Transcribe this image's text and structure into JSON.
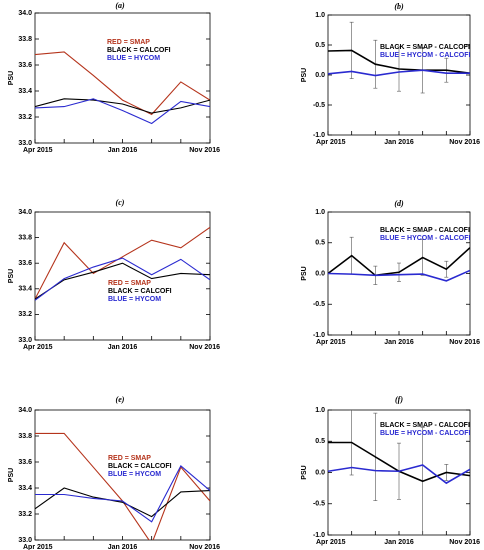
{
  "chart_data": [
    {
      "type": "line",
      "title": "(a)",
      "ylabel": "PSU",
      "categories": [
        "Apr 2015",
        null,
        null,
        "Jan 2016",
        null,
        null,
        "Nov 2016"
      ],
      "ylim": [
        33,
        34
      ],
      "yticks": [
        {
          "value": 33,
          "label": "33.0"
        },
        33.2,
        33.4,
        33.6,
        33.8,
        {
          "value": 34,
          "label": "34.0"
        }
      ],
      "series": [
        {
          "name": "RED = SMAP",
          "color": "#b5341c",
          "values": [
            33.68,
            33.7,
            33.52,
            33.33,
            33.22,
            33.47,
            33.33
          ]
        },
        {
          "name": "BLACK = CALCOFI",
          "color": "#000000",
          "values": [
            33.28,
            33.34,
            33.33,
            33.3,
            33.23,
            33.27,
            33.33
          ]
        },
        {
          "name": "BLUE = HYCOM",
          "color": "#2a2ad0",
          "values": [
            33.27,
            33.28,
            33.34,
            33.25,
            33.15,
            33.32,
            33.28
          ]
        }
      ]
    },
    {
      "type": "line",
      "title": "(b)",
      "ylabel": "PSU",
      "categories": [
        "Apr 2015",
        null,
        null,
        "Jan 2016",
        null,
        null,
        "Nov 2016"
      ],
      "ylim": [
        -1,
        1
      ],
      "yticks": [
        {
          "value": -1,
          "label": "-1.0"
        },
        -0.5,
        {
          "value": 0,
          "label": "0.0"
        },
        0.5,
        {
          "value": 1,
          "label": "1.0"
        }
      ],
      "series": [
        {
          "name": "BLACK = SMAP - CALCOFI",
          "color": "#000000",
          "values": [
            0.4,
            0.41,
            0.18,
            0.1,
            0.08,
            0.08,
            0.03
          ],
          "errors": [
            null,
            0.47,
            0.4,
            0.37,
            0.38,
            0.2,
            null
          ]
        },
        {
          "name": "BLUE = HYCOM - CALCOFI",
          "color": "#2a2ad0",
          "values": [
            0.02,
            0.06,
            -0.01,
            0.05,
            0.08,
            0.03,
            0.03
          ]
        }
      ]
    },
    {
      "type": "line",
      "title": "(c)",
      "ylabel": "PSU",
      "categories": [
        "Apr 2015",
        null,
        null,
        "Jan 2016",
        null,
        null,
        "Nov 2016"
      ],
      "ylim": [
        33,
        34
      ],
      "yticks": [
        {
          "value": 33,
          "label": "33.0"
        },
        33.2,
        33.4,
        33.6,
        33.8,
        {
          "value": 34,
          "label": "34.0"
        }
      ],
      "series": [
        {
          "name": "RED = SMAP",
          "color": "#b5341c",
          "values": [
            33.32,
            33.76,
            33.52,
            33.65,
            33.78,
            33.72,
            33.88
          ]
        },
        {
          "name": "BLACK = CALCOFI",
          "color": "#000000",
          "values": [
            33.32,
            33.47,
            33.53,
            33.6,
            33.48,
            33.52,
            33.51
          ]
        },
        {
          "name": "BLUE = HYCOM",
          "color": "#2a2ad0",
          "values": [
            33.31,
            33.48,
            33.57,
            33.64,
            33.51,
            33.63,
            33.47
          ]
        }
      ]
    },
    {
      "type": "line",
      "title": "(d)",
      "ylabel": "PSU",
      "categories": [
        "Apr 2015",
        null,
        null,
        "Jan 2016",
        null,
        null,
        "Nov 2016"
      ],
      "ylim": [
        -1,
        1
      ],
      "yticks": [
        {
          "value": -1,
          "label": "-1.0"
        },
        -0.5,
        {
          "value": 0,
          "label": "0.0"
        },
        0.5,
        {
          "value": 1,
          "label": "1.0"
        }
      ],
      "series": [
        {
          "name": "BLACK = SMAP - CALCOFI",
          "color": "#000000",
          "values": [
            0,
            0.29,
            -0.03,
            0.02,
            0.26,
            0.07,
            0.42
          ],
          "errors": [
            null,
            0.3,
            0.15,
            0.15,
            0.29,
            0.13,
            null
          ]
        },
        {
          "name": "BLUE = HYCOM - CALCOFI",
          "color": "#2a2ad0",
          "values": [
            0,
            -0.01,
            -0.03,
            -0.02,
            -0.01,
            -0.12,
            0.05
          ]
        }
      ]
    },
    {
      "type": "line",
      "title": "(e)",
      "ylabel": "PSU",
      "categories": [
        "Apr 2015",
        null,
        null,
        "Jan 2016",
        null,
        null,
        "Nov 2016"
      ],
      "ylim": [
        33,
        34
      ],
      "yticks": [
        {
          "value": 33,
          "label": "33.0"
        },
        33.2,
        33.4,
        33.6,
        33.8,
        {
          "value": 34,
          "label": "34.0"
        }
      ],
      "series": [
        {
          "name": "RED = SMAP",
          "color": "#b5341c",
          "values": [
            33.82,
            33.82,
            33.56,
            33.3,
            32.97,
            33.56,
            33.3
          ]
        },
        {
          "name": "BLACK = CALCOFI",
          "color": "#000000",
          "values": [
            33.24,
            33.4,
            33.33,
            33.29,
            33.18,
            33.37,
            33.38
          ]
        },
        {
          "name": "BLUE = HYCOM",
          "color": "#2a2ad0",
          "values": [
            33.35,
            33.35,
            33.32,
            33.3,
            33.14,
            33.57,
            33.38
          ]
        }
      ]
    },
    {
      "type": "line",
      "title": "(f)",
      "ylabel": "PSU",
      "categories": [
        "Apr 2015",
        null,
        null,
        "Jan 2016",
        null,
        null,
        "Nov 2016"
      ],
      "ylim": [
        -1,
        1
      ],
      "yticks": [
        {
          "value": -1,
          "label": "-1.0"
        },
        -0.5,
        {
          "value": 0,
          "label": "0.0"
        },
        0.5,
        {
          "value": 1,
          "label": "1.0"
        }
      ],
      "series": [
        {
          "name": "BLACK = SMAP - CALCOFI",
          "color": "#000000",
          "values": [
            0.48,
            0.48,
            0.25,
            0.02,
            -0.14,
            0,
            -0.05
          ],
          "errors": [
            null,
            0.52,
            0.7,
            0.45,
            0.86,
            0.13,
            null
          ]
        },
        {
          "name": "BLUE = HYCOM - CALCOFI",
          "color": "#2a2ad0",
          "values": [
            0.02,
            0.08,
            0.03,
            0.02,
            0.12,
            -0.17,
            0.05
          ]
        }
      ]
    }
  ]
}
